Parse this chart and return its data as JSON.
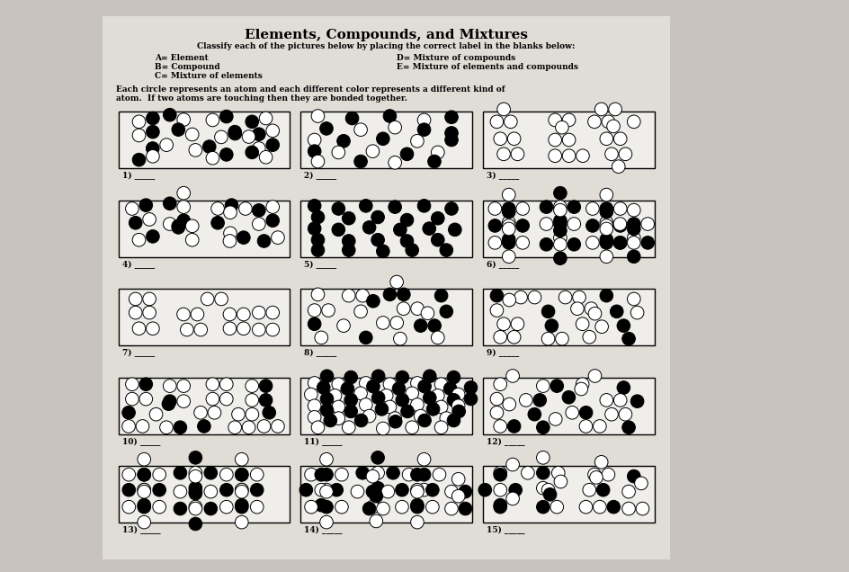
{
  "title": "Elements, Compounds, and Mixtures",
  "subtitle": "Classify each of the pictures below by placing the correct label in the blanks below:",
  "legend_left": [
    "A= Element",
    "B= Compound",
    "C= Mixture of elements"
  ],
  "legend_right": [
    "D= Mixture of compounds",
    "E= Mixture of elements and compounds"
  ],
  "body_text1": "Each circle represents an atom and each different color represents a different kind of",
  "body_text2": "atom.  If two atoms are touching then they are bonded together.",
  "bg_color": "#c8c3bc",
  "paper_color": "#e0ddd7",
  "box_color": "#f0eeea",
  "box_labels": [
    "1)",
    "2)",
    "3)",
    "4)",
    "5)",
    "6)",
    "7)",
    "8)",
    "9)",
    "10)",
    "11)",
    "12)",
    "13)",
    "14)",
    "15)"
  ]
}
